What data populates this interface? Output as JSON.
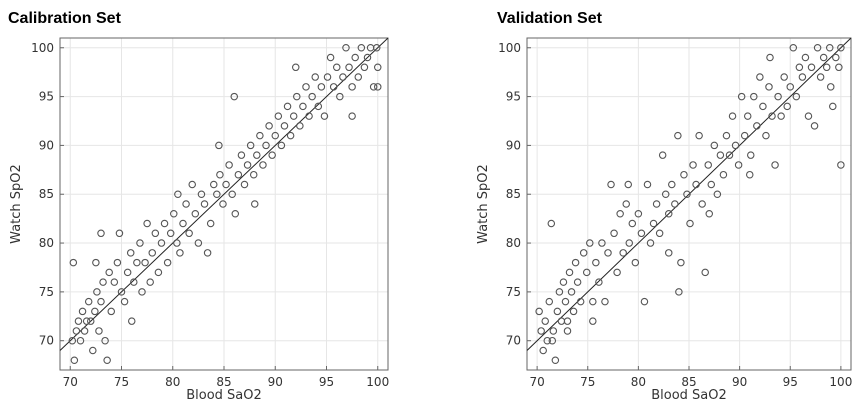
{
  "chart_data": [
    {
      "type": "scatter",
      "title": "Calibration Set",
      "xlabel": "Blood SaO2",
      "ylabel": "Watch SpO2",
      "xlim": [
        69,
        101
      ],
      "ylim": [
        67,
        101
      ],
      "xticks": [
        70,
        75,
        80,
        85,
        90,
        95,
        100
      ],
      "yticks": [
        70,
        75,
        80,
        85,
        90,
        95,
        100
      ],
      "grid": true,
      "identity_line": true,
      "marker": "open-circle",
      "color": "#555555",
      "points": [
        [
          70.3,
          78
        ],
        [
          70.2,
          70
        ],
        [
          70.4,
          68
        ],
        [
          70.6,
          71
        ],
        [
          70.8,
          72
        ],
        [
          71.0,
          70
        ],
        [
          71.2,
          73
        ],
        [
          71.4,
          71
        ],
        [
          71.6,
          72
        ],
        [
          71.8,
          74
        ],
        [
          72.0,
          72
        ],
        [
          72.2,
          69
        ],
        [
          72.4,
          73
        ],
        [
          72.6,
          75
        ],
        [
          72.8,
          71
        ],
        [
          73.0,
          74
        ],
        [
          73.2,
          76
        ],
        [
          73.4,
          70
        ],
        [
          73.6,
          68
        ],
        [
          73.0,
          81
        ],
        [
          73.8,
          77
        ],
        [
          74.0,
          73
        ],
        [
          74.3,
          76
        ],
        [
          74.6,
          78
        ],
        [
          74.8,
          81
        ],
        [
          75.0,
          75
        ],
        [
          75.3,
          74
        ],
        [
          75.6,
          77
        ],
        [
          75.9,
          79
        ],
        [
          76.2,
          76
        ],
        [
          76.5,
          78
        ],
        [
          76.8,
          80
        ],
        [
          77.0,
          75
        ],
        [
          77.3,
          78
        ],
        [
          77.5,
          82
        ],
        [
          77.8,
          76
        ],
        [
          78.0,
          79
        ],
        [
          78.3,
          81
        ],
        [
          78.6,
          77
        ],
        [
          78.9,
          80
        ],
        [
          79.2,
          82
        ],
        [
          79.5,
          78
        ],
        [
          79.8,
          81
        ],
        [
          80.1,
          83
        ],
        [
          80.4,
          80
        ],
        [
          80.7,
          79
        ],
        [
          81.0,
          82
        ],
        [
          81.3,
          84
        ],
        [
          81.6,
          81
        ],
        [
          81.9,
          86
        ],
        [
          82.2,
          83
        ],
        [
          82.5,
          80
        ],
        [
          82.8,
          85
        ],
        [
          83.1,
          84
        ],
        [
          83.4,
          79
        ],
        [
          83.7,
          82
        ],
        [
          84.0,
          86
        ],
        [
          84.3,
          85
        ],
        [
          84.6,
          87
        ],
        [
          84.9,
          84
        ],
        [
          85.2,
          86
        ],
        [
          85.5,
          88
        ],
        [
          85.8,
          85
        ],
        [
          86.1,
          83
        ],
        [
          86.0,
          95
        ],
        [
          86.4,
          87
        ],
        [
          86.7,
          89
        ],
        [
          87.0,
          86
        ],
        [
          87.3,
          88
        ],
        [
          87.6,
          90
        ],
        [
          87.9,
          87
        ],
        [
          88.2,
          89
        ],
        [
          88.5,
          91
        ],
        [
          88.8,
          88
        ],
        [
          89.1,
          90
        ],
        [
          89.4,
          92
        ],
        [
          89.7,
          89
        ],
        [
          90.0,
          91
        ],
        [
          90.3,
          93
        ],
        [
          90.6,
          90
        ],
        [
          90.9,
          92
        ],
        [
          91.2,
          94
        ],
        [
          91.5,
          91
        ],
        [
          91.8,
          93
        ],
        [
          92.1,
          95
        ],
        [
          92.4,
          92
        ],
        [
          92.7,
          94
        ],
        [
          93.0,
          96
        ],
        [
          93.3,
          93
        ],
        [
          93.6,
          95
        ],
        [
          93.9,
          97
        ],
        [
          94.2,
          94
        ],
        [
          94.5,
          96
        ],
        [
          94.8,
          93
        ],
        [
          95.1,
          97
        ],
        [
          95.4,
          99
        ],
        [
          95.7,
          96
        ],
        [
          96.0,
          98
        ],
        [
          96.3,
          95
        ],
        [
          96.6,
          97
        ],
        [
          96.9,
          100
        ],
        [
          97.2,
          98
        ],
        [
          97.5,
          96
        ],
        [
          97.8,
          99
        ],
        [
          98.1,
          97
        ],
        [
          98.4,
          100
        ],
        [
          98.7,
          98
        ],
        [
          99.0,
          99
        ],
        [
          99.3,
          100
        ],
        [
          99.6,
          96
        ],
        [
          99.9,
          100
        ],
        [
          100.0,
          98
        ],
        [
          100.0,
          96
        ],
        [
          97.5,
          93
        ],
        [
          92.0,
          98
        ],
        [
          88.0,
          84
        ],
        [
          84.5,
          90
        ],
        [
          80.5,
          85
        ],
        [
          76.0,
          72
        ],
        [
          72.5,
          78
        ]
      ]
    },
    {
      "type": "scatter",
      "title": "Validation Set",
      "xlabel": "Blood SaO2",
      "ylabel": "Watch SpO2",
      "xlim": [
        69,
        101
      ],
      "ylim": [
        67,
        101
      ],
      "xticks": [
        70,
        75,
        80,
        85,
        90,
        95,
        100
      ],
      "yticks": [
        70,
        75,
        80,
        85,
        90,
        95,
        100
      ],
      "grid": true,
      "identity_line": true,
      "marker": "open-circle",
      "color": "#555555",
      "points": [
        [
          70.2,
          73
        ],
        [
          70.4,
          71
        ],
        [
          70.6,
          69
        ],
        [
          70.8,
          72
        ],
        [
          71.0,
          70
        ],
        [
          71.2,
          74
        ],
        [
          71.4,
          82
        ],
        [
          71.6,
          71
        ],
        [
          71.8,
          68
        ],
        [
          72.0,
          73
        ],
        [
          72.2,
          75
        ],
        [
          72.4,
          72
        ],
        [
          72.6,
          76
        ],
        [
          72.8,
          74
        ],
        [
          73.0,
          71
        ],
        [
          73.2,
          77
        ],
        [
          73.4,
          75
        ],
        [
          73.6,
          73
        ],
        [
          73.8,
          78
        ],
        [
          74.0,
          76
        ],
        [
          74.3,
          74
        ],
        [
          74.6,
          79
        ],
        [
          74.9,
          77
        ],
        [
          75.2,
          80
        ],
        [
          75.5,
          72
        ],
        [
          75.8,
          78
        ],
        [
          76.1,
          76
        ],
        [
          76.4,
          80
        ],
        [
          76.7,
          74
        ],
        [
          77.0,
          79
        ],
        [
          77.3,
          86
        ],
        [
          77.6,
          81
        ],
        [
          77.9,
          77
        ],
        [
          78.2,
          83
        ],
        [
          78.5,
          79
        ],
        [
          78.8,
          84
        ],
        [
          79.1,
          80
        ],
        [
          79.4,
          82
        ],
        [
          79.7,
          78
        ],
        [
          80.0,
          83
        ],
        [
          80.3,
          81
        ],
        [
          80.6,
          74
        ],
        [
          80.9,
          86
        ],
        [
          81.2,
          80
        ],
        [
          81.5,
          82
        ],
        [
          81.8,
          84
        ],
        [
          82.1,
          81
        ],
        [
          82.4,
          89
        ],
        [
          82.7,
          85
        ],
        [
          83.0,
          83
        ],
        [
          83.3,
          86
        ],
        [
          83.6,
          84
        ],
        [
          83.9,
          91
        ],
        [
          84.2,
          78
        ],
        [
          84.0,
          75
        ],
        [
          84.5,
          87
        ],
        [
          84.8,
          85
        ],
        [
          85.1,
          82
        ],
        [
          85.4,
          88
        ],
        [
          85.7,
          86
        ],
        [
          86.0,
          91
        ],
        [
          86.3,
          84
        ],
        [
          86.6,
          77
        ],
        [
          86.9,
          88
        ],
        [
          87.2,
          86
        ],
        [
          87.5,
          90
        ],
        [
          87.8,
          85
        ],
        [
          88.1,
          89
        ],
        [
          88.4,
          87
        ],
        [
          88.7,
          91
        ],
        [
          89.0,
          89
        ],
        [
          89.3,
          93
        ],
        [
          89.6,
          90
        ],
        [
          89.9,
          88
        ],
        [
          90.2,
          95
        ],
        [
          90.5,
          91
        ],
        [
          90.8,
          93
        ],
        [
          91.1,
          89
        ],
        [
          91.4,
          95
        ],
        [
          91.7,
          92
        ],
        [
          92.0,
          97
        ],
        [
          92.3,
          94
        ],
        [
          92.6,
          91
        ],
        [
          92.9,
          96
        ],
        [
          93.2,
          93
        ],
        [
          93.5,
          88
        ],
        [
          93.8,
          95
        ],
        [
          94.1,
          93
        ],
        [
          94.4,
          97
        ],
        [
          94.7,
          94
        ],
        [
          95.0,
          96
        ],
        [
          95.3,
          100
        ],
        [
          95.6,
          95
        ],
        [
          95.9,
          98
        ],
        [
          96.2,
          97
        ],
        [
          96.5,
          99
        ],
        [
          96.8,
          93
        ],
        [
          97.1,
          98
        ],
        [
          97.4,
          92
        ],
        [
          97.7,
          100
        ],
        [
          98.0,
          97
        ],
        [
          98.3,
          99
        ],
        [
          98.6,
          98
        ],
        [
          98.9,
          100
        ],
        [
          99.2,
          94
        ],
        [
          99.5,
          99
        ],
        [
          99.8,
          98
        ],
        [
          100.0,
          100
        ],
        [
          100.0,
          88
        ],
        [
          99.0,
          96
        ],
        [
          93.0,
          99
        ],
        [
          91.0,
          87
        ],
        [
          87.0,
          83
        ],
        [
          83.0,
          79
        ],
        [
          79.0,
          86
        ],
        [
          75.5,
          74
        ],
        [
          73.0,
          72
        ],
        [
          71.5,
          70
        ]
      ]
    }
  ]
}
